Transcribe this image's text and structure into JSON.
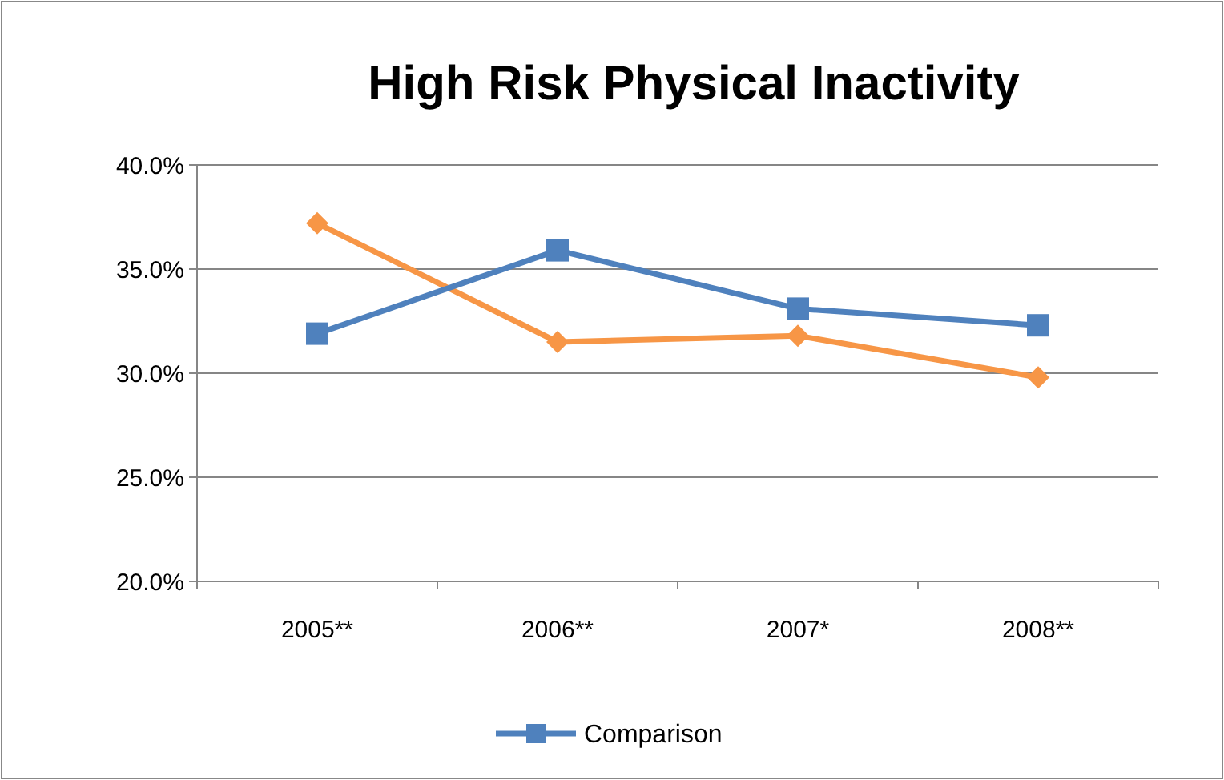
{
  "chart_data": {
    "type": "line",
    "title": "High Risk Physical Inactivity",
    "categories": [
      "2005**",
      "2006**",
      "2007*",
      "2008**"
    ],
    "series": [
      {
        "color": "#f79646",
        "marker": "diamond",
        "values": [
          37.2,
          31.5,
          31.8,
          29.8
        ]
      },
      {
        "name": "Comparison",
        "color": "#4f81bd",
        "marker": "square",
        "values": [
          31.9,
          35.9,
          33.1,
          32.3
        ]
      }
    ],
    "ylim": [
      20,
      40
    ],
    "yticks": [
      {
        "value": 20,
        "label": "20.0%"
      },
      {
        "value": 25,
        "label": "25.0%"
      },
      {
        "value": 30,
        "label": "30.0%"
      },
      {
        "value": 35,
        "label": "35.0%"
      },
      {
        "value": 40,
        "label": "40.0%"
      }
    ],
    "grid": "y",
    "legend": "bottom"
  }
}
